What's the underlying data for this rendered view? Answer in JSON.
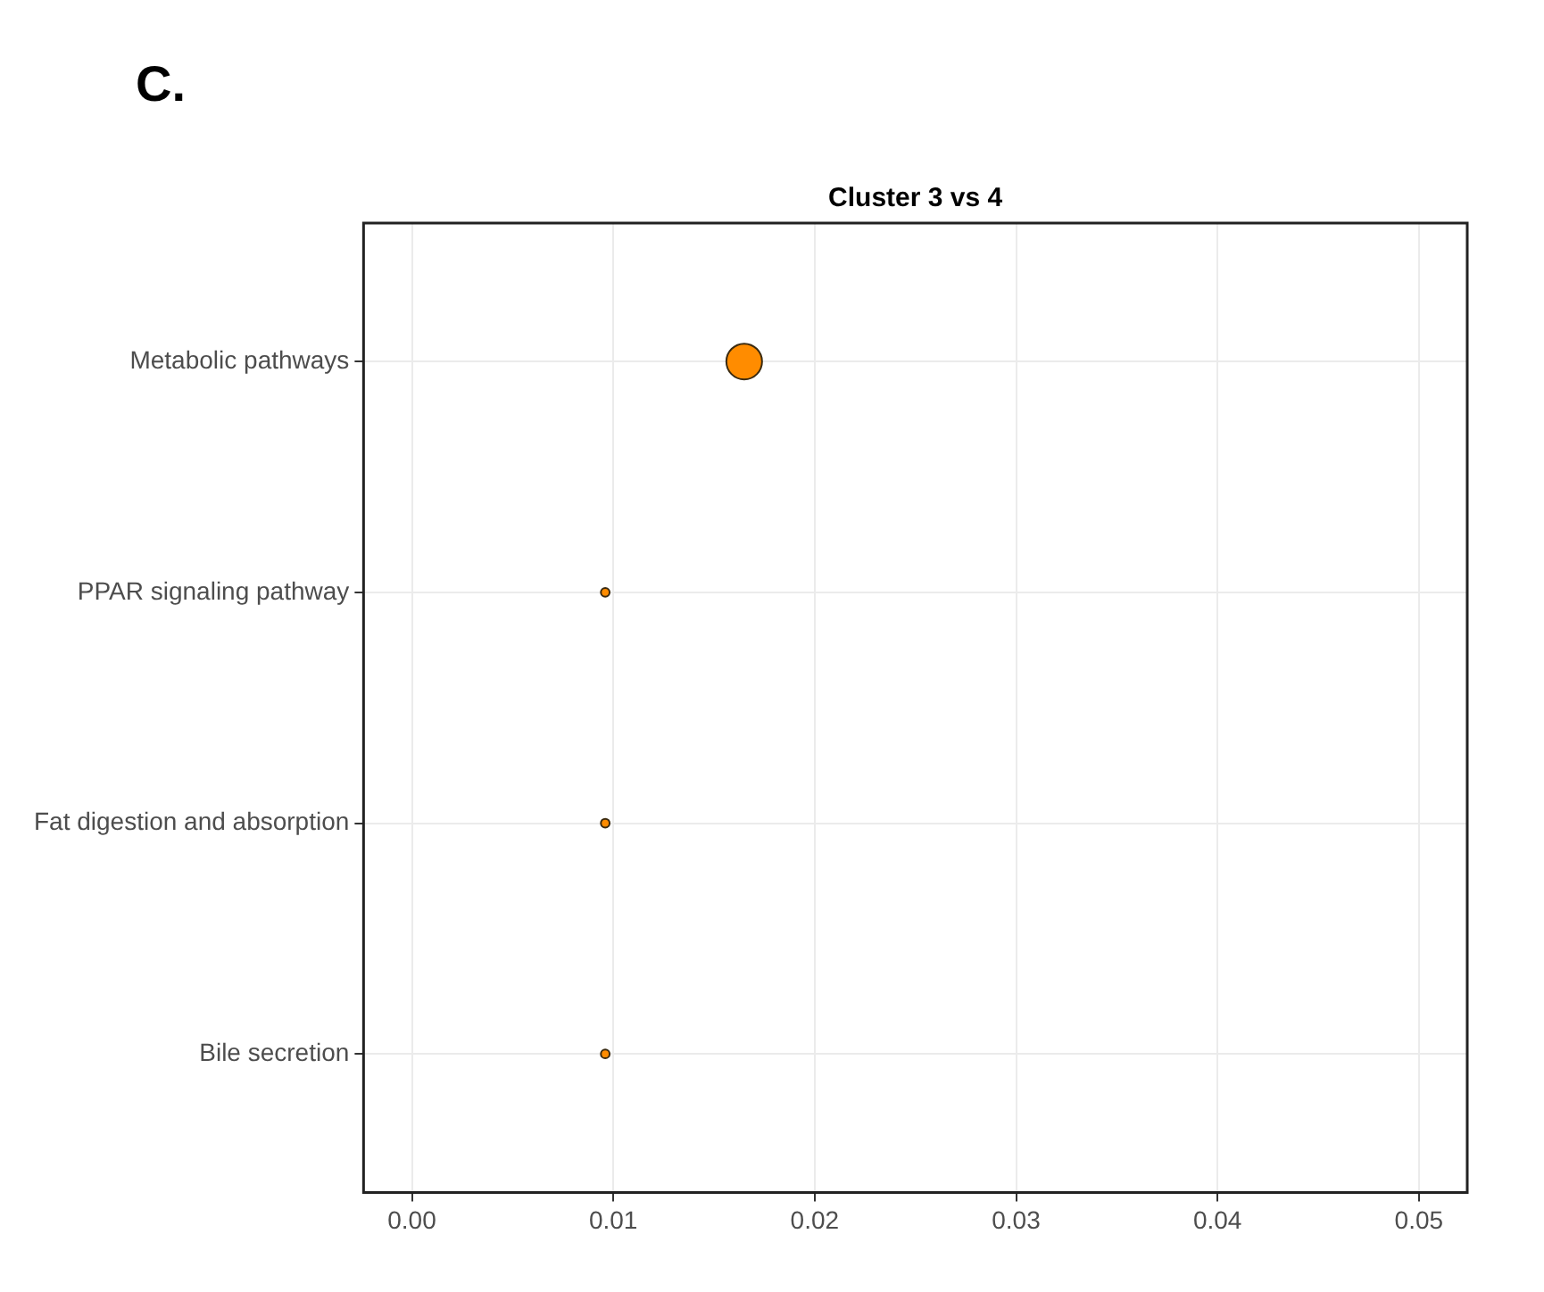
{
  "chart_data": {
    "type": "bubble",
    "title": "Cluster 3 vs 4",
    "annotations": [
      "C."
    ],
    "orientation": "horizontal",
    "categories": [
      "Metabolic pathways",
      "PPAR signaling pathway",
      "Fat digestion and absorption",
      "Bile secretion"
    ],
    "values": [
      0.0165,
      0.0096,
      0.0096,
      0.0096
    ],
    "sizes": [
      1,
      0.06,
      0.06,
      0.06
    ],
    "color": "#ff8c00",
    "xlim": [
      -0.0024,
      0.0524
    ],
    "xticks": [
      {
        "value": 0,
        "label": "0.00"
      },
      {
        "value": 0.01,
        "label": "0.01"
      },
      {
        "value": 0.02,
        "label": "0.02"
      },
      {
        "value": 0.03,
        "label": "0.03"
      },
      {
        "value": 0.04,
        "label": "0.04"
      },
      {
        "value": 0.05,
        "label": "0.05"
      }
    ],
    "grid": true
  }
}
